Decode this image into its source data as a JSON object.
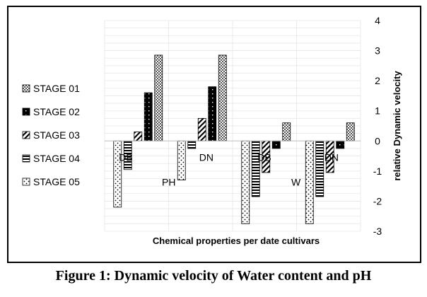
{
  "figure": {
    "caption": "Figure 1:  Dynamic velocity of Water content and pH"
  },
  "chart_data": {
    "type": "bar",
    "categories": [
      "DB",
      "DN",
      "DB",
      "DN"
    ],
    "group_labels": [
      "PH",
      "W"
    ],
    "series": [
      {
        "name": "STAGE 01",
        "values": [
          2.85,
          2.85,
          0.6,
          0.6
        ]
      },
      {
        "name": "STAGE 02",
        "values": [
          1.6,
          1.8,
          -0.25,
          -0.25
        ]
      },
      {
        "name": "STAGE 03",
        "values": [
          0.3,
          0.75,
          -1.05,
          -1.05
        ]
      },
      {
        "name": "STAGE 04",
        "values": [
          -0.95,
          -0.25,
          -1.85,
          -1.85
        ]
      },
      {
        "name": "STAGE 05",
        "values": [
          -2.2,
          -1.3,
          -2.75,
          -2.75
        ]
      }
    ],
    "title": "",
    "xlabel": "Chemical properties per date cultivars",
    "ylabel": "relative  Dynamic velocity",
    "ylim": [
      -3,
      4
    ],
    "yticks": [
      4,
      3,
      2,
      1,
      0,
      -1,
      -2,
      -3
    ],
    "grid": true,
    "legend_position": "left",
    "y_axis_side": "right",
    "colors": {
      "bar_edge": "#000000",
      "grid": "#e6e6e6"
    }
  }
}
